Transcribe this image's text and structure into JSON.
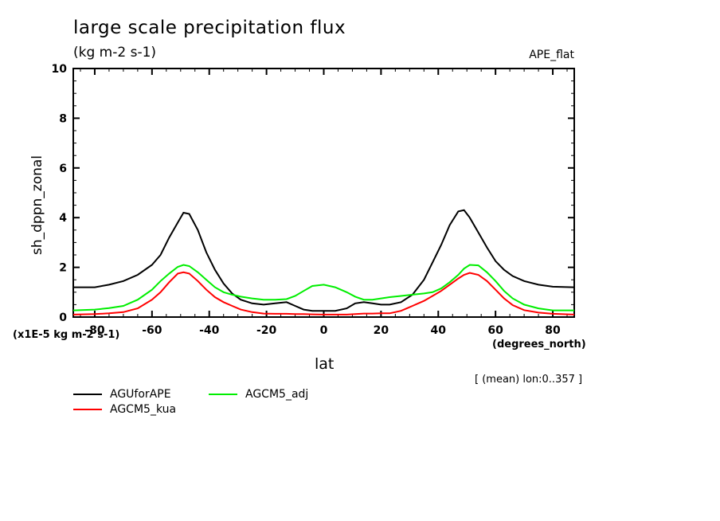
{
  "chart_data": {
    "type": "line",
    "title": "large scale precipitation flux",
    "subtitle": "(kg m-2 s-1)",
    "experiment": "APE_flat",
    "xlabel": "lat",
    "xunits": "(degrees_north)",
    "ylabel": "sh_dppn_zonal",
    "yscale_note": "(x1E-5 kg m-2 s-1)",
    "footnote": "[ (mean) lon:0..357 ]",
    "xlim": [
      -87.5,
      87.5
    ],
    "ylim": [
      0,
      10
    ],
    "xticks": [
      -80,
      -60,
      -40,
      -20,
      0,
      20,
      40,
      60,
      80
    ],
    "xtick_labels": [
      "-80",
      "-60",
      "-40",
      "-20",
      "0",
      "20",
      "40",
      "60",
      "80"
    ],
    "yticks": [
      0,
      2,
      4,
      6,
      8,
      10
    ],
    "ytick_labels": [
      "0",
      "2",
      "4",
      "6",
      "8",
      "10"
    ],
    "grid": false,
    "legend_placement": "bottom-left",
    "x": [
      -87.5,
      -80,
      -75,
      -70,
      -65,
      -60,
      -57,
      -54,
      -51,
      -49,
      -47,
      -44,
      -41,
      -38,
      -35,
      -32,
      -29,
      -25,
      -21,
      -17,
      -13,
      -10,
      -7,
      -4,
      0,
      4,
      8,
      11,
      14,
      17,
      20,
      23,
      27,
      31,
      35,
      38,
      41,
      44,
      47,
      49,
      51,
      54,
      57,
      60,
      63,
      66,
      70,
      75,
      80,
      87.5
    ],
    "series": [
      {
        "name": "AGUforAPE",
        "color": "#000000",
        "values": [
          1.2,
          1.2,
          1.3,
          1.45,
          1.7,
          2.1,
          2.5,
          3.2,
          3.8,
          4.2,
          4.15,
          3.5,
          2.6,
          1.9,
          1.35,
          0.95,
          0.7,
          0.55,
          0.5,
          0.55,
          0.6,
          0.45,
          0.3,
          0.25,
          0.25,
          0.25,
          0.35,
          0.55,
          0.6,
          0.55,
          0.5,
          0.5,
          0.6,
          0.9,
          1.5,
          2.2,
          2.9,
          3.7,
          4.25,
          4.3,
          4.0,
          3.4,
          2.8,
          2.25,
          1.9,
          1.65,
          1.45,
          1.3,
          1.22,
          1.2
        ]
      },
      {
        "name": "AGCM5_kua",
        "color": "#ff0000",
        "values": [
          0.1,
          0.12,
          0.15,
          0.2,
          0.35,
          0.7,
          1.0,
          1.4,
          1.75,
          1.8,
          1.75,
          1.45,
          1.1,
          0.8,
          0.6,
          0.45,
          0.3,
          0.2,
          0.14,
          0.13,
          0.13,
          0.12,
          0.12,
          0.11,
          0.1,
          0.1,
          0.1,
          0.12,
          0.14,
          0.14,
          0.15,
          0.15,
          0.25,
          0.45,
          0.65,
          0.85,
          1.05,
          1.3,
          1.55,
          1.7,
          1.78,
          1.7,
          1.45,
          1.1,
          0.75,
          0.48,
          0.28,
          0.18,
          0.13,
          0.1
        ]
      },
      {
        "name": "AGCM5_adj",
        "color": "#00ee00",
        "values": [
          0.27,
          0.3,
          0.36,
          0.45,
          0.7,
          1.1,
          1.45,
          1.75,
          2.02,
          2.1,
          2.05,
          1.8,
          1.5,
          1.2,
          1.0,
          0.9,
          0.82,
          0.75,
          0.7,
          0.7,
          0.72,
          0.85,
          1.05,
          1.25,
          1.3,
          1.2,
          1.0,
          0.82,
          0.7,
          0.7,
          0.75,
          0.8,
          0.85,
          0.9,
          0.95,
          1.0,
          1.15,
          1.4,
          1.7,
          1.95,
          2.1,
          2.08,
          1.8,
          1.45,
          1.05,
          0.75,
          0.5,
          0.35,
          0.27,
          0.27
        ]
      }
    ]
  },
  "legend": [
    {
      "label": "AGUforAPE",
      "color": "#000000"
    },
    {
      "label": "AGCM5_adj",
      "color": "#00ee00"
    },
    {
      "label": "AGCM5_kua",
      "color": "#ff0000"
    }
  ]
}
